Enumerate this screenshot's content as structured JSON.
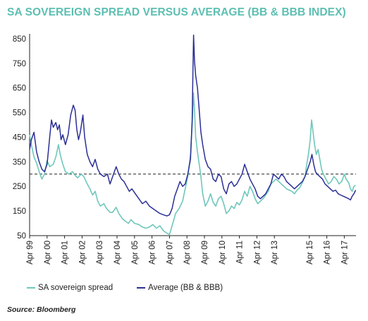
{
  "title": "SA SOVEREIGN SPREAD VERSUS AVERAGE (BB & BBB INDEX)",
  "source": "Source: Bloomberg",
  "chart_data": {
    "type": "line",
    "title": "SA SOVEREIGN SPREAD VERSUS AVERAGE (BB & BBB INDEX)",
    "xlabel": "",
    "ylabel": "",
    "ylim": [
      50,
      870
    ],
    "yticks": [
      50,
      150,
      250,
      350,
      450,
      550,
      650,
      750,
      850
    ],
    "xlim": [
      1999.25,
      2017.92
    ],
    "xticks": [
      {
        "x": 1999.25,
        "label": "Apr 99"
      },
      {
        "x": 2000.25,
        "label": "Apr 00"
      },
      {
        "x": 2001.25,
        "label": "Apr 01"
      },
      {
        "x": 2002.25,
        "label": "Apr 02"
      },
      {
        "x": 2003.25,
        "label": "Apr 03"
      },
      {
        "x": 2004.25,
        "label": "Apr 04"
      },
      {
        "x": 2005.25,
        "label": "Apr 05"
      },
      {
        "x": 2006.25,
        "label": "Apr 06"
      },
      {
        "x": 2007.25,
        "label": "Apr 07"
      },
      {
        "x": 2008.25,
        "label": "Apr 08"
      },
      {
        "x": 2009.25,
        "label": "Apr 09"
      },
      {
        "x": 2010.25,
        "label": "Apr 10"
      },
      {
        "x": 2011.25,
        "label": "Apr 11"
      },
      {
        "x": 2012.25,
        "label": "Apr 12"
      },
      {
        "x": 2013.25,
        "label": "Apr 13"
      },
      {
        "x": 2015.25,
        "label": "Apr 15"
      },
      {
        "x": 2016.25,
        "label": "Apr 16"
      },
      {
        "x": 2017.25,
        "label": "Apr 17"
      }
    ],
    "reference_line": {
      "y": 300,
      "style": "dashed",
      "color": "#222222"
    },
    "grid": false,
    "legend_position": "bottom-left",
    "series": [
      {
        "name": "SA sovereign spread",
        "color": "#6fc7bb",
        "points": [
          [
            1999.25,
            460
          ],
          [
            1999.35,
            420
          ],
          [
            1999.5,
            370
          ],
          [
            1999.65,
            345
          ],
          [
            1999.8,
            310
          ],
          [
            1999.95,
            280
          ],
          [
            2000.1,
            300
          ],
          [
            2000.25,
            355
          ],
          [
            2000.4,
            330
          ],
          [
            2000.6,
            340
          ],
          [
            2000.75,
            370
          ],
          [
            2000.9,
            420
          ],
          [
            2001.0,
            380
          ],
          [
            2001.15,
            340
          ],
          [
            2001.3,
            310
          ],
          [
            2001.5,
            300
          ],
          [
            2001.7,
            310
          ],
          [
            2001.85,
            295
          ],
          [
            2002.0,
            285
          ],
          [
            2002.2,
            300
          ],
          [
            2002.35,
            290
          ],
          [
            2002.55,
            260
          ],
          [
            2002.7,
            240
          ],
          [
            2002.85,
            215
          ],
          [
            2003.0,
            230
          ],
          [
            2003.15,
            190
          ],
          [
            2003.3,
            170
          ],
          [
            2003.5,
            180
          ],
          [
            2003.65,
            160
          ],
          [
            2003.85,
            145
          ],
          [
            2004.0,
            145
          ],
          [
            2004.2,
            165
          ],
          [
            2004.35,
            140
          ],
          [
            2004.55,
            120
          ],
          [
            2004.7,
            110
          ],
          [
            2004.9,
            100
          ],
          [
            2005.05,
            115
          ],
          [
            2005.25,
            100
          ],
          [
            2005.5,
            95
          ],
          [
            2005.7,
            85
          ],
          [
            2005.9,
            80
          ],
          [
            2006.1,
            85
          ],
          [
            2006.3,
            95
          ],
          [
            2006.5,
            80
          ],
          [
            2006.7,
            90
          ],
          [
            2006.9,
            70
          ],
          [
            2007.1,
            60
          ],
          [
            2007.25,
            55
          ],
          [
            2007.4,
            90
          ],
          [
            2007.6,
            140
          ],
          [
            2007.8,
            160
          ],
          [
            2008.0,
            190
          ],
          [
            2008.15,
            240
          ],
          [
            2008.3,
            290
          ],
          [
            2008.45,
            380
          ],
          [
            2008.55,
            500
          ],
          [
            2008.62,
            630
          ],
          [
            2008.68,
            560
          ],
          [
            2008.75,
            450
          ],
          [
            2008.85,
            390
          ],
          [
            2008.95,
            340
          ],
          [
            2009.05,
            290
          ],
          [
            2009.15,
            220
          ],
          [
            2009.3,
            170
          ],
          [
            2009.45,
            190
          ],
          [
            2009.6,
            220
          ],
          [
            2009.75,
            185
          ],
          [
            2009.9,
            170
          ],
          [
            2010.05,
            200
          ],
          [
            2010.2,
            210
          ],
          [
            2010.35,
            180
          ],
          [
            2010.5,
            140
          ],
          [
            2010.65,
            150
          ],
          [
            2010.8,
            170
          ],
          [
            2010.95,
            160
          ],
          [
            2011.1,
            185
          ],
          [
            2011.25,
            175
          ],
          [
            2011.4,
            195
          ],
          [
            2011.55,
            230
          ],
          [
            2011.7,
            210
          ],
          [
            2011.85,
            250
          ],
          [
            2012.0,
            230
          ],
          [
            2012.15,
            200
          ],
          [
            2012.3,
            180
          ],
          [
            2012.45,
            190
          ],
          [
            2012.6,
            200
          ],
          [
            2012.75,
            215
          ],
          [
            2012.9,
            230
          ],
          [
            2013.05,
            260
          ],
          [
            2013.2,
            270
          ],
          [
            2013.35,
            280
          ],
          [
            2013.5,
            270
          ],
          [
            2013.65,
            260
          ],
          [
            2013.8,
            250
          ],
          [
            2013.95,
            240
          ],
          [
            2014.1,
            235
          ],
          [
            2014.25,
            230
          ],
          [
            2014.4,
            220
          ],
          [
            2014.55,
            235
          ],
          [
            2014.7,
            245
          ],
          [
            2014.85,
            265
          ],
          [
            2015.0,
            290
          ],
          [
            2015.1,
            340
          ],
          [
            2015.2,
            380
          ],
          [
            2015.3,
            440
          ],
          [
            2015.38,
            520
          ],
          [
            2015.45,
            480
          ],
          [
            2015.55,
            420
          ],
          [
            2015.65,
            380
          ],
          [
            2015.75,
            400
          ],
          [
            2015.85,
            360
          ],
          [
            2015.95,
            320
          ],
          [
            2016.05,
            300
          ],
          [
            2016.2,
            280
          ],
          [
            2016.35,
            260
          ],
          [
            2016.5,
            270
          ],
          [
            2016.65,
            290
          ],
          [
            2016.8,
            280
          ],
          [
            2016.95,
            260
          ],
          [
            2017.1,
            270
          ],
          [
            2017.25,
            300
          ],
          [
            2017.35,
            280
          ],
          [
            2017.5,
            265
          ],
          [
            2017.6,
            240
          ],
          [
            2017.7,
            230
          ],
          [
            2017.8,
            250
          ],
          [
            2017.9,
            255
          ]
        ]
      },
      {
        "name": "Average (BB & BBB)",
        "color": "#2b2f96",
        "points": [
          [
            1999.25,
            400
          ],
          [
            1999.35,
            440
          ],
          [
            1999.5,
            470
          ],
          [
            1999.65,
            390
          ],
          [
            1999.8,
            350
          ],
          [
            1999.95,
            320
          ],
          [
            2000.1,
            310
          ],
          [
            2000.25,
            340
          ],
          [
            2000.4,
            450
          ],
          [
            2000.5,
            520
          ],
          [
            2000.6,
            490
          ],
          [
            2000.75,
            510
          ],
          [
            2000.85,
            480
          ],
          [
            2000.95,
            500
          ],
          [
            2001.05,
            440
          ],
          [
            2001.15,
            460
          ],
          [
            2001.3,
            420
          ],
          [
            2001.45,
            460
          ],
          [
            2001.6,
            540
          ],
          [
            2001.75,
            580
          ],
          [
            2001.85,
            560
          ],
          [
            2001.95,
            480
          ],
          [
            2002.05,
            440
          ],
          [
            2002.15,
            470
          ],
          [
            2002.3,
            540
          ],
          [
            2002.4,
            450
          ],
          [
            2002.55,
            380
          ],
          [
            2002.7,
            350
          ],
          [
            2002.85,
            330
          ],
          [
            2003.0,
            360
          ],
          [
            2003.15,
            320
          ],
          [
            2003.3,
            300
          ],
          [
            2003.5,
            290
          ],
          [
            2003.7,
            300
          ],
          [
            2003.85,
            260
          ],
          [
            2004.0,
            290
          ],
          [
            2004.2,
            330
          ],
          [
            2004.35,
            300
          ],
          [
            2004.5,
            280
          ],
          [
            2004.65,
            270
          ],
          [
            2004.8,
            250
          ],
          [
            2004.95,
            230
          ],
          [
            2005.1,
            240
          ],
          [
            2005.3,
            220
          ],
          [
            2005.5,
            200
          ],
          [
            2005.7,
            180
          ],
          [
            2005.9,
            190
          ],
          [
            2006.1,
            170
          ],
          [
            2006.3,
            160
          ],
          [
            2006.5,
            150
          ],
          [
            2006.7,
            140
          ],
          [
            2006.9,
            135
          ],
          [
            2007.1,
            130
          ],
          [
            2007.25,
            135
          ],
          [
            2007.4,
            160
          ],
          [
            2007.55,
            210
          ],
          [
            2007.7,
            240
          ],
          [
            2007.85,
            270
          ],
          [
            2008.0,
            250
          ],
          [
            2008.15,
            260
          ],
          [
            2008.3,
            300
          ],
          [
            2008.45,
            360
          ],
          [
            2008.55,
            520
          ],
          [
            2008.6,
            760
          ],
          [
            2008.63,
            865
          ],
          [
            2008.68,
            760
          ],
          [
            2008.75,
            700
          ],
          [
            2008.85,
            650
          ],
          [
            2008.95,
            560
          ],
          [
            2009.05,
            470
          ],
          [
            2009.15,
            420
          ],
          [
            2009.3,
            360
          ],
          [
            2009.45,
            330
          ],
          [
            2009.6,
            320
          ],
          [
            2009.75,
            280
          ],
          [
            2009.9,
            270
          ],
          [
            2010.05,
            300
          ],
          [
            2010.2,
            290
          ],
          [
            2010.35,
            240
          ],
          [
            2010.5,
            220
          ],
          [
            2010.65,
            260
          ],
          [
            2010.8,
            270
          ],
          [
            2010.95,
            250
          ],
          [
            2011.1,
            260
          ],
          [
            2011.25,
            280
          ],
          [
            2011.4,
            300
          ],
          [
            2011.55,
            340
          ],
          [
            2011.7,
            310
          ],
          [
            2011.85,
            280
          ],
          [
            2012.0,
            260
          ],
          [
            2012.15,
            240
          ],
          [
            2012.3,
            210
          ],
          [
            2012.45,
            200
          ],
          [
            2012.6,
            210
          ],
          [
            2012.75,
            220
          ],
          [
            2012.9,
            240
          ],
          [
            2013.05,
            260
          ],
          [
            2013.2,
            300
          ],
          [
            2013.35,
            290
          ],
          [
            2013.5,
            280
          ],
          [
            2013.65,
            300
          ],
          [
            2013.8,
            290
          ],
          [
            2013.95,
            270
          ],
          [
            2014.1,
            260
          ],
          [
            2014.25,
            250
          ],
          [
            2014.4,
            240
          ],
          [
            2014.55,
            250
          ],
          [
            2014.7,
            260
          ],
          [
            2014.85,
            270
          ],
          [
            2015.0,
            290
          ],
          [
            2015.15,
            320
          ],
          [
            2015.3,
            350
          ],
          [
            2015.4,
            380
          ],
          [
            2015.5,
            340
          ],
          [
            2015.6,
            310
          ],
          [
            2015.7,
            300
          ],
          [
            2015.85,
            290
          ],
          [
            2016.0,
            280
          ],
          [
            2016.15,
            260
          ],
          [
            2016.3,
            250
          ],
          [
            2016.45,
            240
          ],
          [
            2016.6,
            230
          ],
          [
            2016.75,
            235
          ],
          [
            2016.9,
            220
          ],
          [
            2017.05,
            215
          ],
          [
            2017.2,
            210
          ],
          [
            2017.35,
            205
          ],
          [
            2017.5,
            200
          ],
          [
            2017.6,
            195
          ],
          [
            2017.7,
            210
          ],
          [
            2017.8,
            220
          ],
          [
            2017.9,
            235
          ]
        ]
      }
    ]
  },
  "legend": {
    "items": [
      {
        "label": "SA sovereign spread",
        "color": "#6fc7bb"
      },
      {
        "label": "Average (BB & BBB)",
        "color": "#2b2f96"
      }
    ]
  }
}
